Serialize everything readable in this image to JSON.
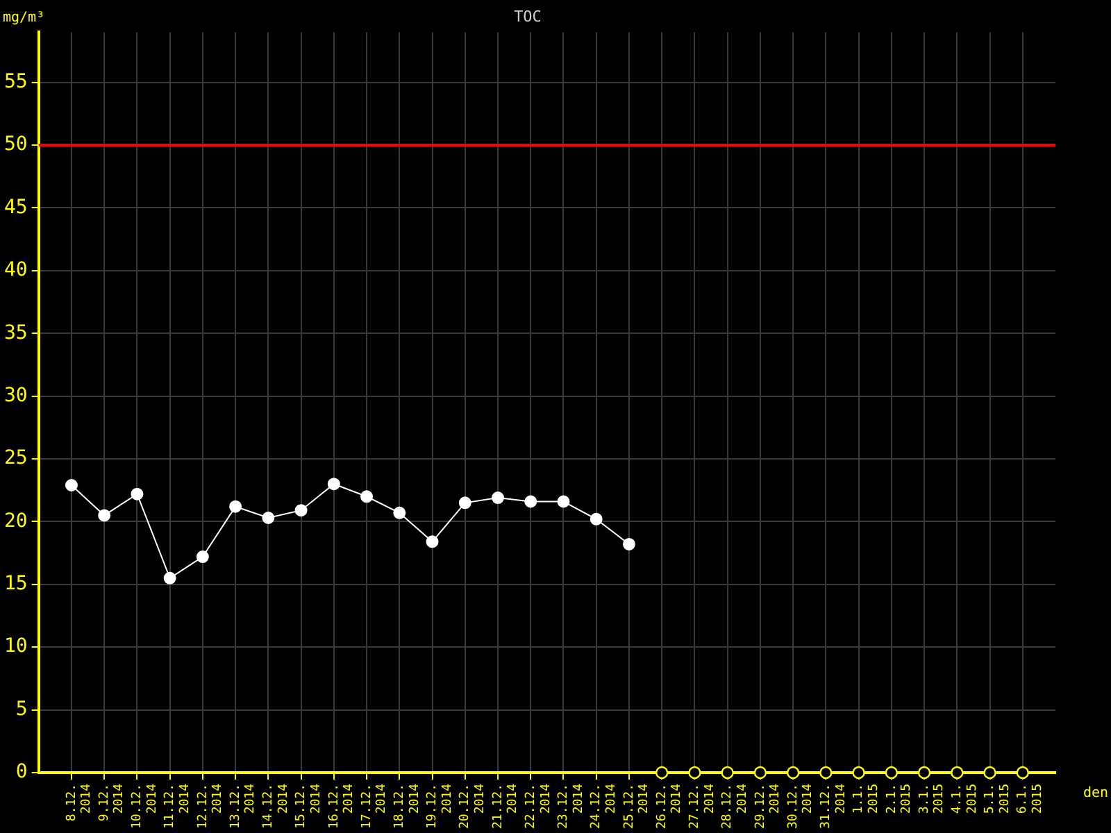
{
  "chart_data": {
    "type": "line",
    "title": "TOC",
    "xlabel": "den",
    "ylabel": "mg/m³",
    "categories": [
      "8.12. 2014",
      "9.12. 2014",
      "10.12. 2014",
      "11.12. 2014",
      "12.12. 2014",
      "13.12. 2014",
      "14.12. 2014",
      "15.12. 2014",
      "16.12. 2014",
      "17.12. 2014",
      "18.12. 2014",
      "19.12. 2014",
      "20.12. 2014",
      "21.12. 2014",
      "22.12. 2014",
      "23.12. 2014",
      "24.12. 2014",
      "25.12. 2014",
      "26.12. 2014",
      "27.12. 2014",
      "28.12. 2014",
      "29.12. 2014",
      "30.12. 2014",
      "31.12. 2014",
      "1.1. 2015",
      "2.1. 2015",
      "3.1. 2015",
      "4.1. 2015",
      "5.1. 2015",
      "6.1. 2015"
    ],
    "series": [
      {
        "color": "#ffffff",
        "values": [
          22.9,
          20.5,
          22.2,
          15.5,
          17.2,
          21.2,
          20.3,
          20.9,
          23.0,
          22.0,
          20.7,
          18.4,
          21.5,
          21.9,
          21.6,
          21.6,
          20.2,
          18.2,
          null,
          null,
          null,
          null,
          null,
          null,
          null,
          null,
          null,
          null,
          null,
          null
        ]
      },
      {
        "type": "scatter",
        "color": "#ffff00",
        "values": [
          null,
          null,
          null,
          null,
          null,
          null,
          null,
          null,
          null,
          null,
          null,
          null,
          null,
          null,
          null,
          null,
          null,
          null,
          0,
          0,
          0,
          0,
          0,
          0,
          0,
          0,
          0,
          0,
          0,
          0
        ]
      }
    ],
    "ylim": [
      0,
      59
    ],
    "yticks": [
      0,
      5,
      10,
      15,
      20,
      25,
      30,
      35,
      40,
      45,
      50,
      55
    ],
    "ref_lines": [
      {
        "axis": "y",
        "value": 50,
        "color": "#ff0000"
      }
    ],
    "grid": true,
    "legend": false,
    "marker": "circle",
    "line_style": "solid"
  }
}
